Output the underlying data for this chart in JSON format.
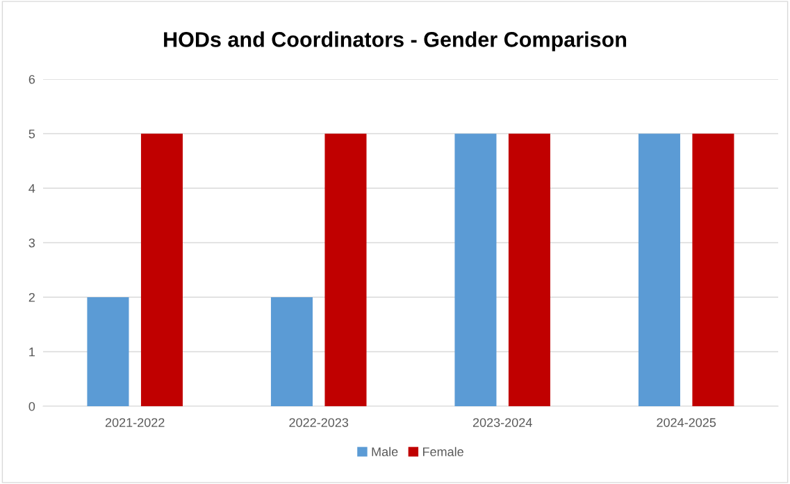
{
  "chart_data": {
    "type": "bar",
    "title": "HODs and Coordinators - Gender Comparison",
    "categories": [
      "2021-2022",
      "2022-2023",
      "2023-2024",
      "2024-2025"
    ],
    "series": [
      {
        "name": "Male",
        "color": "#5b9bd5",
        "values": [
          2,
          2,
          5,
          5
        ]
      },
      {
        "name": "Female",
        "color": "#c00000",
        "values": [
          5,
          5,
          5,
          5
        ]
      }
    ],
    "ylim": [
      0,
      6
    ],
    "yticks": [
      0,
      1,
      2,
      3,
      4,
      5,
      6
    ],
    "grid": "y",
    "legend": "bottom"
  }
}
